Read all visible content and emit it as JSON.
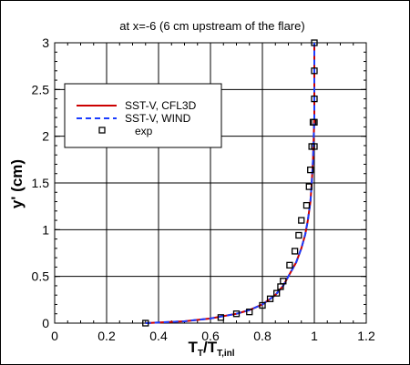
{
  "chart_data": {
    "type": "line",
    "title": "at x=-6 (6 cm upstream of the flare)",
    "xlabel": {
      "main": "T",
      "sub1": "T",
      "slash": "/T",
      "sub2": "T,inl"
    },
    "ylabel": "y' (cm)",
    "xlim": [
      0,
      1.2
    ],
    "ylim": [
      0,
      3
    ],
    "xticks": [
      0,
      0.2,
      0.4,
      0.6,
      0.8,
      1,
      1.2
    ],
    "xtick_labels": [
      "0",
      "0.2",
      "0.4",
      "0.6",
      "0.8",
      "1",
      "1.2"
    ],
    "yticks": [
      0,
      0.5,
      1,
      1.5,
      2,
      2.5,
      3
    ],
    "ytick_labels": [
      "0",
      "0.5",
      "1",
      "1.5",
      "2",
      "2.5",
      "3"
    ],
    "grid": true,
    "legend_position": "upper-left",
    "series": [
      {
        "name": "SST-V, CFL3D",
        "style": "line",
        "color": "#cc0000",
        "x": [
          0.35,
          0.5,
          0.6,
          0.7,
          0.75,
          0.8,
          0.85,
          0.88,
          0.9,
          0.93,
          0.95,
          0.965,
          0.975,
          0.985,
          0.99,
          0.995,
          1.0,
          1.0
        ],
        "y": [
          0.0,
          0.02,
          0.05,
          0.1,
          0.14,
          0.2,
          0.3,
          0.4,
          0.5,
          0.65,
          0.8,
          0.95,
          1.1,
          1.3,
          1.5,
          1.75,
          2.2,
          3.0
        ]
      },
      {
        "name": "SST-V, WIND",
        "style": "dashed",
        "color": "#1a3cff",
        "x": [
          0.35,
          0.5,
          0.6,
          0.7,
          0.75,
          0.8,
          0.85,
          0.88,
          0.9,
          0.93,
          0.95,
          0.965,
          0.975,
          0.985,
          0.99,
          0.995,
          1.0,
          1.0
        ],
        "y": [
          0.0,
          0.02,
          0.05,
          0.1,
          0.14,
          0.2,
          0.3,
          0.4,
          0.5,
          0.65,
          0.8,
          0.95,
          1.1,
          1.3,
          1.5,
          1.75,
          2.2,
          3.0
        ]
      },
      {
        "name": "exp",
        "style": "markers",
        "color": "#000000",
        "x": [
          0.35,
          0.64,
          0.7,
          0.75,
          0.8,
          0.83,
          0.855,
          0.87,
          0.88,
          0.905,
          0.925,
          0.94,
          0.95,
          0.97,
          0.98,
          0.985,
          0.99,
          0.995,
          1.0,
          1.0,
          1.0,
          1.0,
          1.0
        ],
        "y": [
          0.0,
          0.06,
          0.1,
          0.12,
          0.19,
          0.26,
          0.32,
          0.39,
          0.45,
          0.62,
          0.77,
          0.94,
          1.1,
          1.26,
          1.46,
          1.64,
          1.89,
          2.15,
          2.4,
          2.7,
          3.0,
          1.89,
          2.15
        ]
      }
    ]
  }
}
